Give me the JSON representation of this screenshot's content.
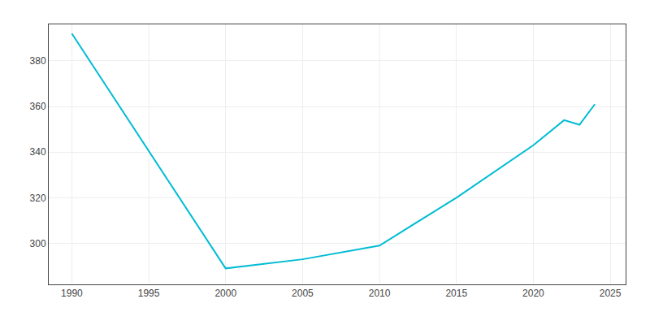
{
  "chart_data": {
    "type": "line",
    "x": [
      1990,
      2000,
      2005,
      2010,
      2015,
      2020,
      2022,
      2023,
      2024
    ],
    "values": [
      392,
      289,
      293,
      299,
      320,
      343,
      354,
      352,
      361
    ],
    "color": "#00bcd4",
    "xlim": [
      1988.5,
      2026
    ],
    "ylim": [
      282,
      396
    ],
    "xticks": [
      1990,
      1995,
      2000,
      2005,
      2010,
      2015,
      2020,
      2025
    ],
    "yticks": [
      300,
      320,
      340,
      360,
      380
    ],
    "grid": true
  }
}
